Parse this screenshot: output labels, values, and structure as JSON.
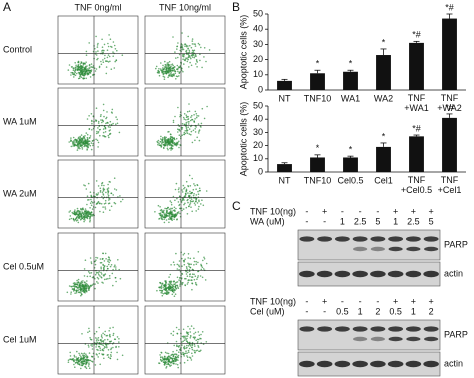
{
  "panel_labels": [
    "A",
    "B",
    "C"
  ],
  "flow": {
    "columns": [
      "TNF 0ng/ml",
      "TNF 10ng/ml"
    ],
    "rows": [
      "Control",
      "WA 1uM",
      "WA 2uM",
      "Cel 0.5uM",
      "Cel 1uM"
    ]
  },
  "chart_data": [
    {
      "type": "bar",
      "ylabel": "Apoptotic cells (%)",
      "categories": [
        "NT",
        "TNF10",
        "WA1",
        "WA2",
        "TNF\n+WA1",
        "TNF\n+WA2"
      ],
      "values": [
        6,
        11,
        12,
        23,
        31,
        47
      ],
      "errors": [
        1,
        2,
        1,
        4,
        1,
        3
      ],
      "annotations": [
        null,
        "*",
        "*",
        "*",
        "*#",
        "*#"
      ],
      "color": "#111111",
      "ylim": [
        0,
        50
      ],
      "yticks": [
        0,
        10,
        20,
        30,
        40,
        50
      ]
    },
    {
      "type": "bar",
      "ylabel": "Apoptotic cells (%)",
      "categories": [
        "NT",
        "TNF10",
        "Cel0.5",
        "Cel1",
        "TNF\n+Cel0.5",
        "TNF\n+Cel1"
      ],
      "values": [
        6,
        11,
        11,
        19,
        27,
        41
      ],
      "errors": [
        1,
        2,
        1,
        3,
        1,
        3
      ],
      "annotations": [
        null,
        "*",
        "*",
        "*",
        "*#",
        "*#"
      ],
      "color": "#111111",
      "ylim": [
        0,
        50
      ],
      "yticks": [
        0,
        10,
        20,
        30,
        40,
        50
      ]
    }
  ],
  "blots": [
    {
      "rows": [
        {
          "label": "TNF 10(ng)",
          "lanes": [
            "-",
            "+",
            "-",
            "-",
            "-",
            "+",
            "+",
            "+"
          ]
        },
        {
          "label": "WA (uM)",
          "lanes": [
            "-",
            "-",
            "1",
            "2.5",
            "5",
            "1",
            "2.5",
            "5"
          ]
        }
      ],
      "bands": [
        "PARP",
        "actin"
      ]
    },
    {
      "rows": [
        {
          "label": "TNF 10(ng)",
          "lanes": [
            "-",
            "+",
            "-",
            "-",
            "-",
            "+",
            "+",
            "+"
          ]
        },
        {
          "label": "Cel (uM)",
          "lanes": [
            "-",
            "-",
            "0.5",
            "1",
            "2",
            "0.5",
            "1",
            "2"
          ]
        }
      ],
      "bands": [
        "PARP",
        "actin"
      ]
    }
  ]
}
